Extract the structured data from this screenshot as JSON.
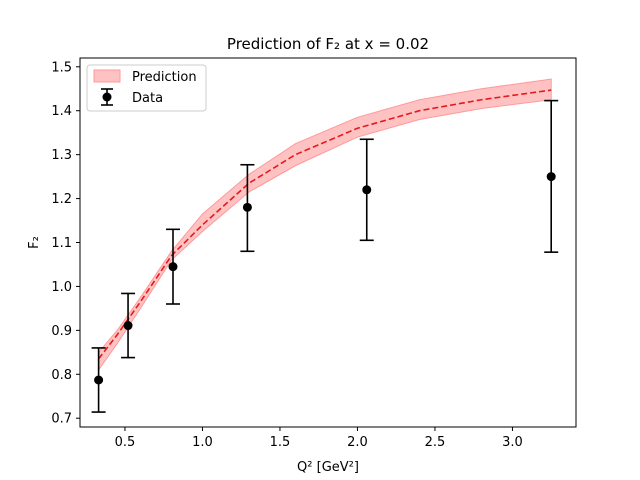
{
  "chart_data": {
    "type": "line",
    "title": "Prediction of F₂ at x = 0.02",
    "xlabel": "Q² [GeV²]",
    "ylabel": "F₂",
    "xlim": [
      0.21,
      3.41
    ],
    "ylim": [
      0.68,
      1.52
    ],
    "x_ticks": [
      0.5,
      1.0,
      1.5,
      2.0,
      2.5,
      3.0
    ],
    "x_tick_labels": [
      "0.5",
      "1.0",
      "1.5",
      "2.0",
      "2.5",
      "3.0"
    ],
    "y_ticks": [
      0.7,
      0.8,
      0.9,
      1.0,
      1.1,
      1.2,
      1.3,
      1.4,
      1.5
    ],
    "y_tick_labels": [
      "0.7",
      "0.8",
      "0.9",
      "1.0",
      "1.1",
      "1.2",
      "1.3",
      "1.4",
      "1.5"
    ],
    "grid": false,
    "legend_position": "upper-left",
    "series": [
      {
        "name": "Prediction",
        "kind": "dashed-line-with-band",
        "color": "#e41a1c",
        "band_color": "#ff9999",
        "x": [
          0.33,
          0.45,
          0.6,
          0.8,
          1.0,
          1.3,
          1.6,
          2.0,
          2.4,
          2.8,
          3.25
        ],
        "y": [
          0.835,
          0.89,
          0.965,
          1.07,
          1.14,
          1.235,
          1.3,
          1.36,
          1.4,
          1.425,
          1.447
        ],
        "lower": [
          0.81,
          0.87,
          0.95,
          1.06,
          1.125,
          1.215,
          1.275,
          1.34,
          1.38,
          1.405,
          1.425
        ],
        "upper": [
          0.85,
          0.9,
          0.975,
          1.08,
          1.165,
          1.255,
          1.325,
          1.385,
          1.425,
          1.45,
          1.472
        ]
      },
      {
        "name": "Data",
        "kind": "errorbar",
        "color": "#000000",
        "x": [
          0.33,
          0.52,
          0.81,
          1.29,
          2.06,
          3.25
        ],
        "y": [
          0.787,
          0.911,
          1.045,
          1.18,
          1.22,
          1.25
        ],
        "yerr_low": [
          0.073,
          0.073,
          0.085,
          0.1,
          0.115,
          0.172
        ],
        "yerr_high": [
          0.073,
          0.073,
          0.085,
          0.097,
          0.115,
          0.173
        ]
      }
    ]
  }
}
